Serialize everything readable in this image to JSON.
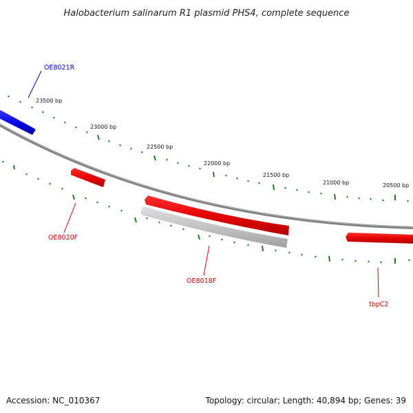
{
  "title": "Halobacterium salinarum R1 plasmid PHS4, complete sequence",
  "accession": "Accession: NC_010367",
  "summary": "Topology: circular; Length: 40,894 bp; Genes: 39",
  "colors": {
    "forward_gene": "#ee0000",
    "reverse_gene": "#0000ee",
    "tick": "#1f7a1f",
    "backbone": "#808080",
    "pseudo_feature": "#bdbdbd"
  },
  "tick_labels": [
    "23500 bp",
    "23000 bp",
    "22500 bp",
    "22000 bp",
    "21500 bp",
    "21000 bp",
    "20500 bp"
  ],
  "genes": [
    {
      "name": "OE8021R",
      "strand": "reverse"
    },
    {
      "name": "OE8020F",
      "strand": "forward"
    },
    {
      "name": "OE8018F",
      "strand": "forward"
    },
    {
      "name": "tbpC2",
      "strand": "forward"
    }
  ]
}
